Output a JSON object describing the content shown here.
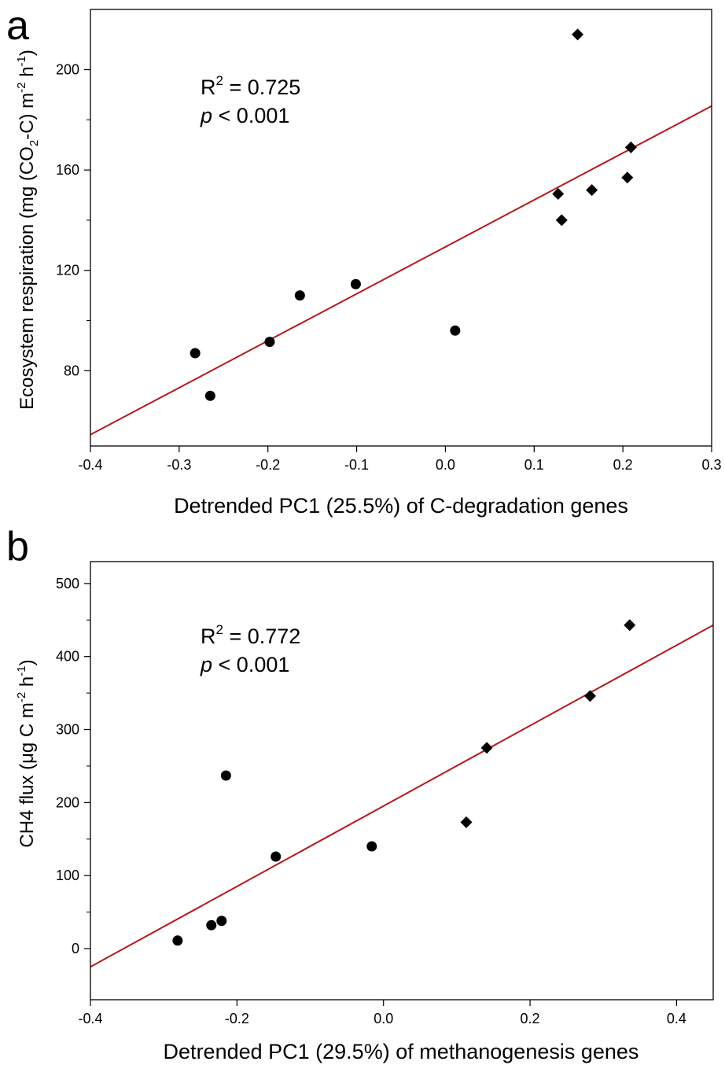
{
  "chart_data": [
    {
      "type": "scatter",
      "panel_label": "a",
      "xlabel": "Detrended PC1 (25.5%) of C-degradation genes",
      "ylabel_parts": {
        "p1": "Ecosystem respiration (mg (CO",
        "s1": "2",
        "p2": "-C) m",
        "s2": "-2",
        "p3": " h",
        "s3": "-1",
        "p4": ")"
      },
      "xlim": [
        -0.4,
        0.3
      ],
      "ylim": [
        50,
        224
      ],
      "xticks": [
        -0.4,
        -0.3,
        -0.2,
        -0.1,
        0.0,
        0.1,
        0.2,
        0.3
      ],
      "xtick_labels": [
        "-0.4",
        "-0.3",
        "-0.2",
        "-0.1",
        "0.0",
        "0.1",
        "0.2",
        "0.3"
      ],
      "yticks": [
        80,
        120,
        160,
        200
      ],
      "ytick_labels": [
        "80",
        "120",
        "160",
        "200"
      ],
      "minor_yticks": [
        100,
        140,
        180
      ],
      "annotation": {
        "r_prefix": "R",
        "r_sup": "2",
        "r_value": " = 0.725",
        "p_symbol": "p",
        "p_value": " < 0.001"
      },
      "series": [
        {
          "marker": "circle",
          "points": [
            [
              -0.282,
              87.0
            ],
            [
              -0.265,
              70.0
            ],
            [
              -0.198,
              91.5
            ],
            [
              -0.164,
              110.0
            ],
            [
              -0.101,
              114.5
            ],
            [
              0.011,
              96.0
            ]
          ]
        },
        {
          "marker": "diamond",
          "points": [
            [
              0.127,
              150.5
            ],
            [
              0.131,
              140.0
            ],
            [
              0.149,
              214.0
            ],
            [
              0.165,
              152.0
            ],
            [
              0.205,
              157.0
            ],
            [
              0.209,
              169.0
            ]
          ]
        }
      ],
      "fit_line": {
        "x": [
          -0.4,
          0.3
        ],
        "y": [
          54.5,
          185.5
        ]
      },
      "line_color": "#b5191c",
      "marker_color": "#000000"
    },
    {
      "type": "scatter",
      "panel_label": "b",
      "xlabel": "Detrended PC1 (29.5%) of methanogenesis genes",
      "ylabel_parts": {
        "p1": "CH4 flux (μg C m",
        "s1": "-2",
        "p2": " h",
        "s2": "-1",
        "p3": ")"
      },
      "xlim": [
        -0.4,
        0.45
      ],
      "ylim": [
        -70,
        530
      ],
      "xticks": [
        -0.4,
        -0.2,
        0.0,
        0.2,
        0.4
      ],
      "xtick_labels": [
        "-0.4",
        "-0.2",
        "0.0",
        "0.2",
        "0.4"
      ],
      "yticks": [
        0,
        100,
        200,
        300,
        400,
        500
      ],
      "ytick_labels": [
        "0",
        "100",
        "200",
        "300",
        "400",
        "500"
      ],
      "minor_yticks": [
        50,
        150,
        250,
        350,
        450
      ],
      "annotation": {
        "r_prefix": "R",
        "r_sup": "2",
        "r_value": " = 0.772",
        "p_symbol": "p",
        "p_value": " < 0.001"
      },
      "series": [
        {
          "marker": "circle",
          "points": [
            [
              -0.281,
              11.0
            ],
            [
              -0.235,
              32.0
            ],
            [
              -0.221,
              38.0
            ],
            [
              -0.215,
              237.0
            ],
            [
              -0.147,
              126.0
            ],
            [
              -0.016,
              140.0
            ]
          ]
        },
        {
          "marker": "diamond",
          "points": [
            [
              0.113,
              173.0
            ],
            [
              0.141,
              275.0
            ],
            [
              0.282,
              346.0
            ],
            [
              0.336,
              443.0
            ]
          ]
        }
      ],
      "fit_line": {
        "x": [
          -0.4,
          0.45
        ],
        "y": [
          -25.0,
          443.0
        ]
      },
      "line_color": "#b5191c",
      "marker_color": "#000000"
    }
  ]
}
